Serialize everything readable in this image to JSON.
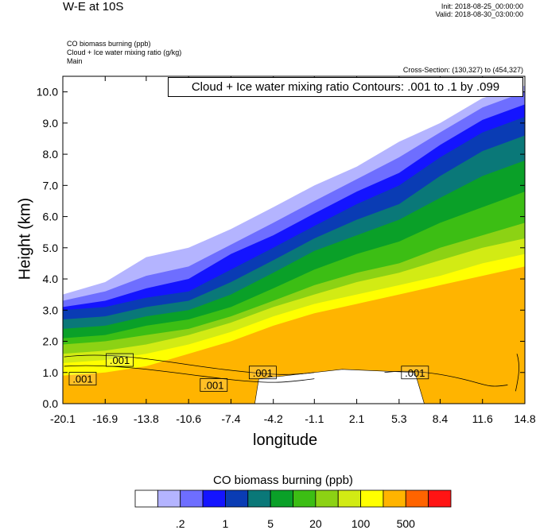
{
  "header": {
    "title": "W-E at 10S",
    "init": "Init: 2018-08-25_00:00:00",
    "valid": "Valid: 2018-08-30_03:00:00",
    "fields": [
      "CO biomass burning   (ppb)",
      "Cloud + Ice water mixing ratio   (g/kg)",
      "Main"
    ],
    "cross_section": "Cross-Section: (130,327) to (454,327)"
  },
  "contour_info": "Cloud + Ice water mixing ratio Contours: .001 to .1 by .099",
  "colorbar": {
    "title": "CO biomass burning  (ppb)",
    "colors": [
      "#ffffff",
      "#b4b4ff",
      "#6e6eff",
      "#1414ff",
      "#0a3cb4",
      "#0a7878",
      "#0aa028",
      "#3cbe14",
      "#8cd214",
      "#d2eb14",
      "#ffff00",
      "#ffb400",
      "#ff6400",
      "#ff1414"
    ],
    "labels": [
      ".2",
      "1",
      "5",
      "20",
      "100",
      "500"
    ]
  },
  "chart_data": {
    "type": "heatmap",
    "title": "W-E at 10S",
    "xlabel": "longitude",
    "ylabel": "Height (km)",
    "xlim": [
      -20.1,
      14.8
    ],
    "ylim": [
      0.0,
      10.5
    ],
    "x_tick_labels": [
      "-20.1",
      "-16.9",
      "-13.8",
      "-10.6",
      "-7.4",
      "-4.2",
      "-1.1",
      "2.1",
      "5.3",
      "8.4",
      "11.6",
      "14.8"
    ],
    "y_tick_labels": [
      "0.0",
      "1.0",
      "2.0",
      "3.0",
      "4.0",
      "5.0",
      "6.0",
      "7.0",
      "8.0",
      "9.0",
      "10.0"
    ],
    "contour_labels": [
      ".001",
      ".001",
      ".001",
      ".001",
      ".001"
    ],
    "bands": [
      {
        "level": 1,
        "lon": [
          -20.1,
          -16.9,
          -13.8,
          -10.6,
          -7.4,
          -4.2,
          -1.1,
          2.1,
          5.3,
          8.4,
          11.6,
          14.8
        ],
        "height": [
          3.5,
          3.9,
          4.7,
          5.0,
          5.6,
          6.3,
          7.0,
          7.6,
          8.4,
          9.0,
          9.8,
          10.2
        ]
      },
      {
        "level": 2,
        "lon": [
          -20.1,
          -16.9,
          -13.8,
          -10.6,
          -7.4,
          -4.2,
          -1.1,
          2.1,
          5.3,
          8.4,
          11.6,
          14.8
        ],
        "height": [
          3.3,
          3.6,
          4.1,
          4.4,
          5.1,
          5.8,
          6.5,
          7.2,
          7.9,
          8.7,
          9.5,
          10.0
        ]
      },
      {
        "level": 3,
        "lon": [
          -20.1,
          -16.9,
          -13.8,
          -10.6,
          -7.4,
          -4.2,
          -1.1,
          2.1,
          5.3,
          8.4,
          11.6,
          14.8
        ],
        "height": [
          3.1,
          3.3,
          3.7,
          4.0,
          4.8,
          5.4,
          6.1,
          6.8,
          7.4,
          8.3,
          9.1,
          9.6
        ]
      },
      {
        "level": 4,
        "lon": [
          -20.1,
          -16.9,
          -13.8,
          -10.6,
          -7.4,
          -4.2,
          -1.1,
          2.1,
          5.3,
          8.4,
          11.6,
          14.8
        ],
        "height": [
          3.0,
          3.1,
          3.4,
          3.6,
          4.3,
          5.0,
          5.7,
          6.4,
          7.0,
          7.9,
          8.7,
          9.2
        ]
      },
      {
        "level": 5,
        "lon": [
          -20.1,
          -16.9,
          -13.8,
          -10.6,
          -7.4,
          -4.2,
          -1.1,
          2.1,
          5.3,
          8.4,
          11.6,
          14.8
        ],
        "height": [
          2.7,
          2.8,
          3.1,
          3.3,
          3.9,
          4.6,
          5.3,
          5.9,
          6.4,
          7.3,
          8.1,
          8.6
        ]
      },
      {
        "level": 6,
        "lon": [
          -20.1,
          -16.9,
          -13.8,
          -10.6,
          -7.4,
          -4.2,
          -1.1,
          2.1,
          5.3,
          8.4,
          11.6,
          14.8
        ],
        "height": [
          2.4,
          2.5,
          2.8,
          3.0,
          3.5,
          4.2,
          4.9,
          5.4,
          5.9,
          6.6,
          7.3,
          7.8
        ]
      },
      {
        "level": 7,
        "lon": [
          -20.1,
          -16.9,
          -13.8,
          -10.6,
          -7.4,
          -4.2,
          -1.1,
          2.1,
          5.3,
          8.4,
          11.6,
          14.8
        ],
        "height": [
          2.1,
          2.2,
          2.5,
          2.7,
          3.1,
          3.7,
          4.3,
          4.8,
          5.2,
          5.8,
          6.3,
          6.8
        ]
      },
      {
        "level": 8,
        "lon": [
          -20.1,
          -16.9,
          -13.8,
          -10.6,
          -7.4,
          -4.2,
          -1.1,
          2.1,
          5.3,
          8.4,
          11.6,
          14.8
        ],
        "height": [
          1.9,
          2.0,
          2.2,
          2.4,
          2.8,
          3.3,
          3.8,
          4.2,
          4.5,
          5.0,
          5.4,
          5.8
        ]
      },
      {
        "level": 9,
        "lon": [
          -20.1,
          -16.9,
          -13.8,
          -10.6,
          -7.4,
          -4.2,
          -1.1,
          2.1,
          5.3,
          8.4,
          11.6,
          14.8
        ],
        "height": [
          1.6,
          1.7,
          1.9,
          2.2,
          2.6,
          3.1,
          3.5,
          3.9,
          4.2,
          4.6,
          5.0,
          5.3
        ]
      },
      {
        "level": 10,
        "lon": [
          -20.1,
          -16.9,
          -13.8,
          -10.6,
          -7.4,
          -4.2,
          -1.1,
          2.1,
          5.3,
          8.4,
          11.6,
          14.8
        ],
        "height": [
          1.3,
          1.4,
          1.6,
          1.9,
          2.3,
          2.8,
          3.2,
          3.5,
          3.8,
          4.1,
          4.5,
          4.8
        ]
      },
      {
        "level": 11,
        "lon": [
          -20.1,
          -16.9,
          -13.8,
          -10.6,
          -7.4,
          -4.2,
          -1.1,
          2.1,
          5.3,
          8.4,
          11.6,
          14.8
        ],
        "height": [
          0.9,
          1.0,
          1.2,
          1.6,
          2.0,
          2.5,
          2.9,
          3.2,
          3.5,
          3.8,
          4.1,
          4.4
        ]
      }
    ]
  }
}
